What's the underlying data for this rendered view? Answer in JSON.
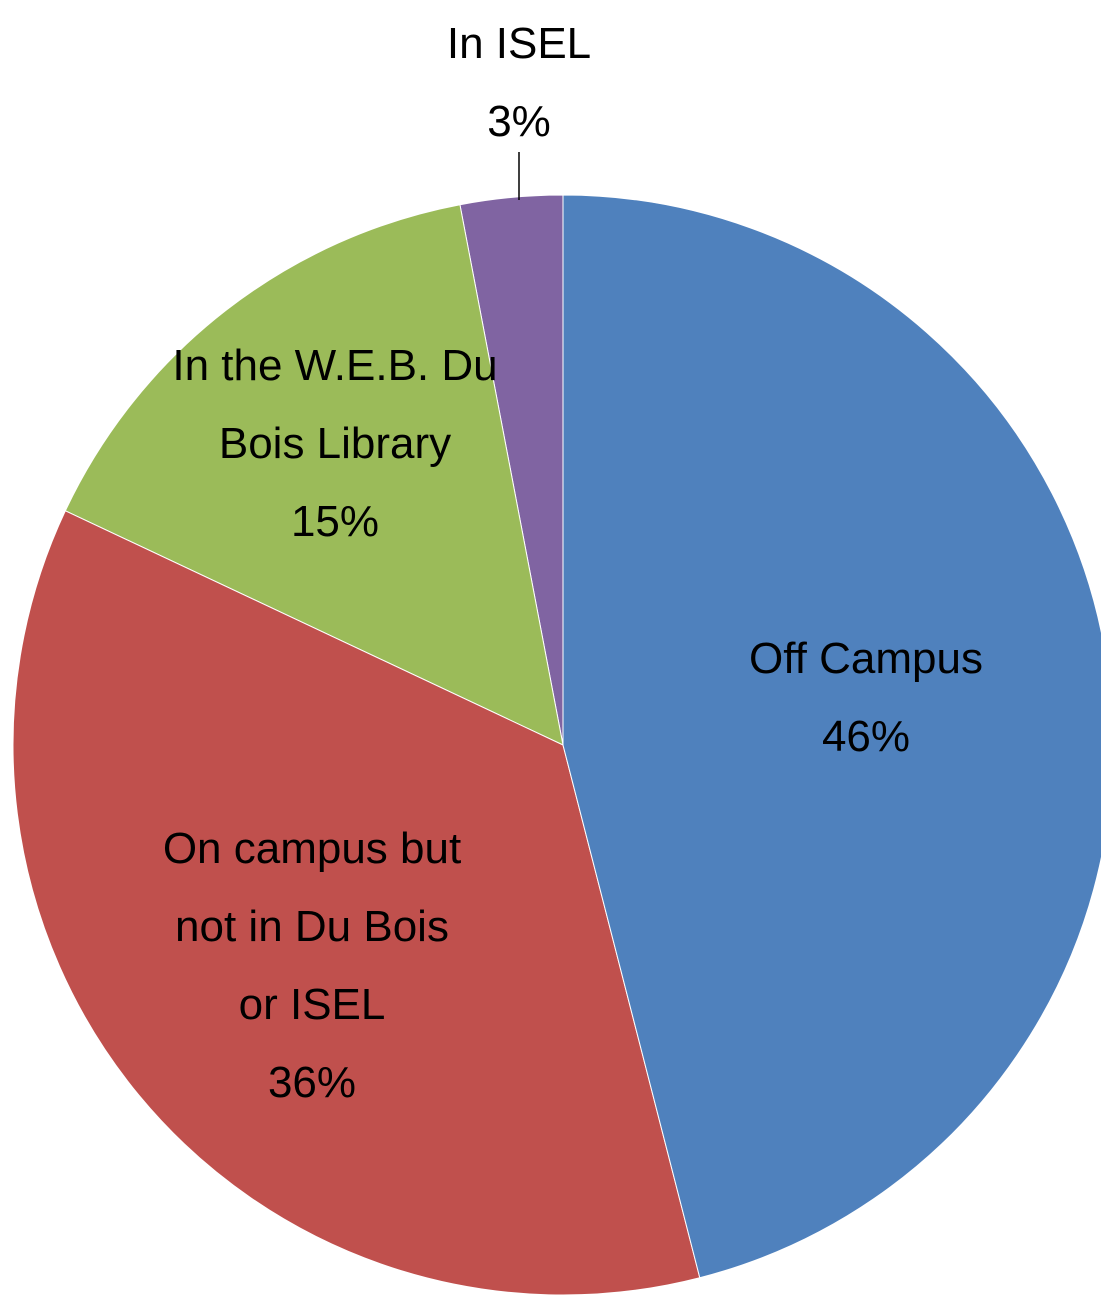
{
  "chart_data": {
    "type": "pie",
    "categories": [
      "Off Campus",
      "On campus but not in Du Bois or ISEL",
      "In the W.E.B. Du Bois Library",
      "In ISEL"
    ],
    "values": [
      46,
      36,
      15,
      3
    ],
    "value_labels": [
      "46%",
      "36%",
      "15%",
      "3%"
    ],
    "colors": [
      "#4f81bd",
      "#c0504d",
      "#9bbb59",
      "#8064a2"
    ]
  }
}
